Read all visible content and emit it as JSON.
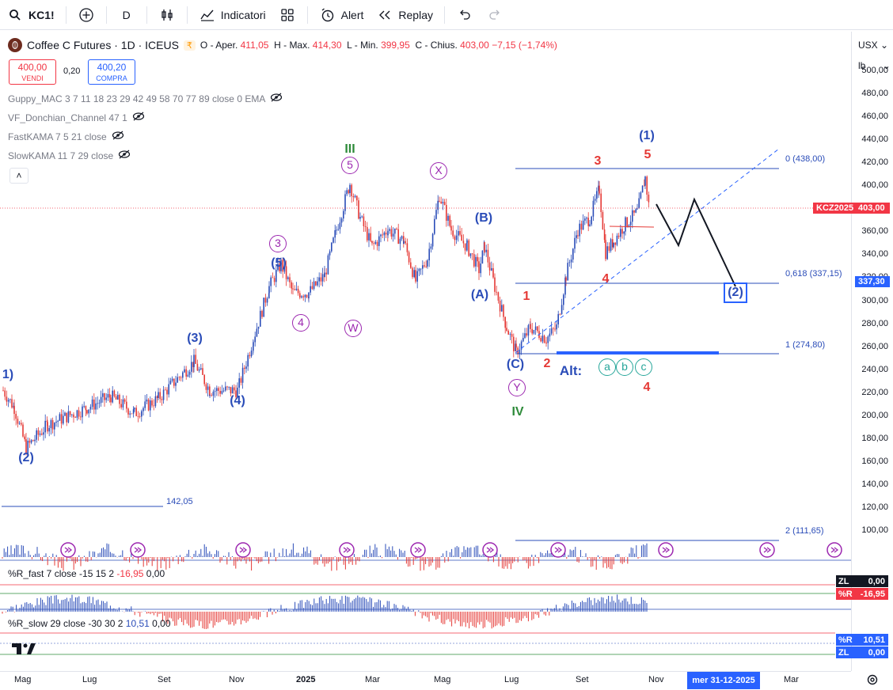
{
  "toolbar": {
    "symbol": "KC1!",
    "interval": "D",
    "indicators_label": "Indicatori",
    "alert_label": "Alert",
    "replay_label": "Replay"
  },
  "header": {
    "title": "Coffee C Futures · 1D · ICEUS",
    "open_label": "O - Aper.",
    "open": "411,05",
    "high_label": "H - Max.",
    "high": "414,30",
    "low_label": "L - Min.",
    "low": "399,95",
    "close_label": "C - Chius.",
    "close": "403,00",
    "change": "−7,15 (−1,74%)"
  },
  "quotes": {
    "sell_price": "400,00",
    "sell_label": "VENDI",
    "spread": "0,20",
    "buy_price": "400,20",
    "buy_label": "COMPRA"
  },
  "indicators": [
    "Guppy_MAC 3 7 11 18 23 29 42 49 58 70 77 89 close 0 EMA",
    "VF_Donchian_Channel 47 1",
    "FastKAMA 7 5 21 close",
    "SlowKAMA 11 7 29 close"
  ],
  "price_axis": {
    "currency": "USX",
    "unit": "lb",
    "ticks": [
      "500,00",
      "480,00",
      "460,00",
      "440,00",
      "420,00",
      "400,00",
      "380,00",
      "360,00",
      "340,00",
      "320,00",
      "300,00",
      "280,00",
      "260,00",
      "240,00",
      "220,00",
      "200,00",
      "180,00",
      "160,00",
      "140,00",
      "120,00",
      "100,00"
    ],
    "symbol_tag": "KCZ2025",
    "last_price": "403,00",
    "fib_tag": "337,30"
  },
  "time_axis": {
    "ticks": [
      "Mag",
      "Lug",
      "Set",
      "Nov",
      "2025",
      "Mar",
      "Mag",
      "Lug",
      "Set",
      "Nov",
      "Mar"
    ],
    "cursor_date": "mer 31-12-2025"
  },
  "fib_levels": [
    "0 (438,00)",
    "0,618 (337,15)",
    "1 (274,80)",
    "2 (111,65)"
  ],
  "level_142": "142,05",
  "waves": {
    "blue": [
      "1)",
      "(2)",
      "(3)",
      "(4)",
      "(5)",
      "(A)",
      "(B)",
      "(C)",
      "(1)",
      "(2)"
    ],
    "purple_circled": [
      "3",
      "4",
      "5",
      "W",
      "X",
      "Y"
    ],
    "green": [
      "III",
      "IV"
    ],
    "red": [
      "1",
      "2",
      "3",
      "4",
      "5",
      "4",
      "4"
    ],
    "alt_label": "Alt:",
    "alt_circled": [
      "a",
      "b",
      "c"
    ]
  },
  "pane1": {
    "label": "%R_fast 7 close -15 15 2",
    "value": "-16,95",
    "value2": "0,00",
    "tag_zl": "ZL",
    "tag_zl_value": "0,00",
    "tag_r": "%R",
    "tag_r_value": "-16,95"
  },
  "pane2": {
    "label": "%R_slow 29 close -30 30 2",
    "value": "10,51",
    "value2": "0,00",
    "tag_r": "%R",
    "tag_r_value": "10,51",
    "tag_zl": "ZL",
    "tag_zl_value": "0,00"
  },
  "colors": {
    "up": "#2a4cb8",
    "down": "#e53935",
    "accent": "#2962ff"
  },
  "chart_data": {
    "type": "candlestick",
    "x_range": [
      "2024-04",
      "2026-03"
    ],
    "ylim": [
      100,
      500
    ],
    "overlays": {
      "fib_retracement": [
        438.0,
        337.15,
        274.8,
        111.65
      ],
      "horizontal_level": 142.05
    },
    "last_price": 403.0
  }
}
